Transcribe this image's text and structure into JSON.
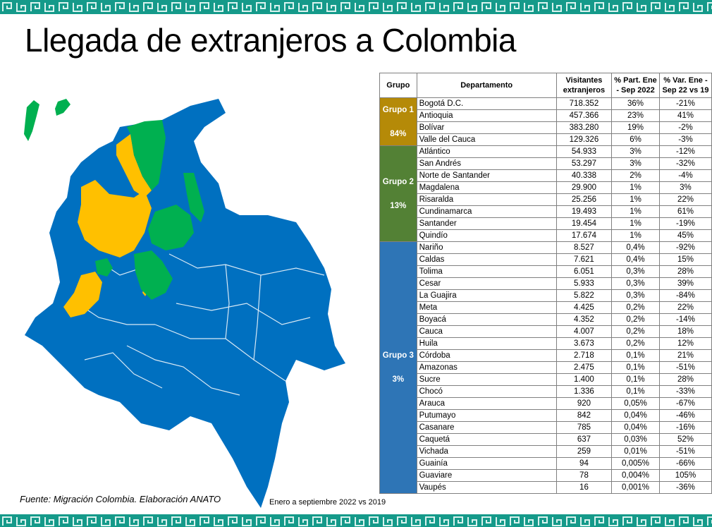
{
  "title": "Llegada de extranjeros a Colombia",
  "source": "Fuente: Migración Colombia. Elaboración ANATO",
  "period": "Enero a septiembre 2022 vs 2019",
  "colors": {
    "group1": "#b58a08",
    "group2": "#538135",
    "group3": "#2e75b6",
    "map_blue": "#0070c0",
    "map_green": "#00b050",
    "map_yellow": "#ffc000",
    "band": "#159a8a"
  },
  "table": {
    "headers": [
      "Grupo",
      "Departamento",
      "Visitantes extranjeros",
      "% Part. Ene - Sep 2022",
      "% Var. Ene - Sep 22 vs 19"
    ],
    "groups": [
      {
        "name": "Grupo 1",
        "share": "84%",
        "rows": [
          [
            "Bogotá D.C.",
            "718.352",
            "36%",
            "-21%"
          ],
          [
            "Antioquia",
            "457.366",
            "23%",
            "41%"
          ],
          [
            "Bolívar",
            "383.280",
            "19%",
            "-2%"
          ],
          [
            "Valle del Cauca",
            "129.326",
            "6%",
            "-3%"
          ]
        ]
      },
      {
        "name": "Grupo 2",
        "share": "13%",
        "rows": [
          [
            "Atlántico",
            "54.933",
            "3%",
            "-12%"
          ],
          [
            "San Andrés",
            "53.297",
            "3%",
            "-32%"
          ],
          [
            "Norte de Santander",
            "40.338",
            "2%",
            "-4%"
          ],
          [
            "Magdalena",
            "29.900",
            "1%",
            "3%"
          ],
          [
            "Risaralda",
            "25.256",
            "1%",
            "22%"
          ],
          [
            "Cundinamarca",
            "19.493",
            "1%",
            "61%"
          ],
          [
            "Santander",
            "19.454",
            "1%",
            "-19%"
          ],
          [
            "Quindío",
            "17.674",
            "1%",
            "45%"
          ]
        ]
      },
      {
        "name": "Grupo 3",
        "share": "3%",
        "rows": [
          [
            "Nariño",
            "8.527",
            "0,4%",
            "-92%"
          ],
          [
            "Caldas",
            "7.621",
            "0,4%",
            "15%"
          ],
          [
            "Tolima",
            "6.051",
            "0,3%",
            "28%"
          ],
          [
            "Cesar",
            "5.933",
            "0,3%",
            "39%"
          ],
          [
            "La Guajira",
            "5.822",
            "0,3%",
            "-84%"
          ],
          [
            "Meta",
            "4.425",
            "0,2%",
            "22%"
          ],
          [
            "Boyacá",
            "4.352",
            "0,2%",
            "-14%"
          ],
          [
            "Cauca",
            "4.007",
            "0,2%",
            "18%"
          ],
          [
            "Huila",
            "3.673",
            "0,2%",
            "12%"
          ],
          [
            "Córdoba",
            "2.718",
            "0,1%",
            "21%"
          ],
          [
            "Amazonas",
            "2.475",
            "0,1%",
            "-51%"
          ],
          [
            "Sucre",
            "1.400",
            "0,1%",
            "28%"
          ],
          [
            "Chocó",
            "1.336",
            "0,1%",
            "-33%"
          ],
          [
            "Arauca",
            "920",
            "0,05%",
            "-67%"
          ],
          [
            "Putumayo",
            "842",
            "0,04%",
            "-46%"
          ],
          [
            "Casanare",
            "785",
            "0,04%",
            "-16%"
          ],
          [
            "Caquetá",
            "637",
            "0,03%",
            "52%"
          ],
          [
            "Vichada",
            "259",
            "0,01%",
            "-51%"
          ],
          [
            "Guainía",
            "94",
            "0,005%",
            "-66%"
          ],
          [
            "Guaviare",
            "78",
            "0,004%",
            "105%"
          ],
          [
            "Vaupés",
            "16",
            "0,001%",
            "-36%"
          ]
        ]
      }
    ]
  }
}
